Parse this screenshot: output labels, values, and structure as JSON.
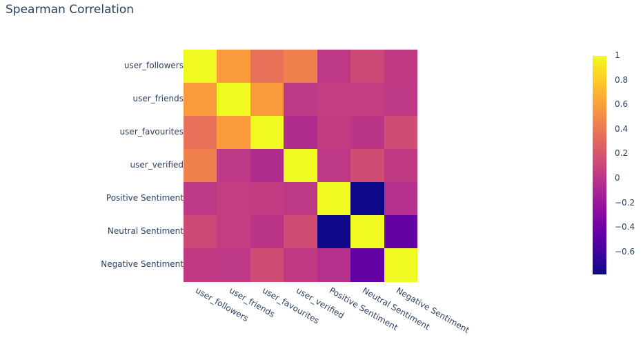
{
  "title": "Spearman Correlation",
  "chart_data": {
    "type": "heatmap",
    "title": "Spearman Correlation",
    "x": [
      "user_followers",
      "user_friends",
      "user_favourites",
      "user_verified",
      "Positive Sentiment",
      "Neutral Sentiment",
      "Negative Sentiment"
    ],
    "y": [
      "user_followers",
      "user_friends",
      "user_favourites",
      "user_verified",
      "Positive Sentiment",
      "Neutral Sentiment",
      "Negative Sentiment"
    ],
    "z": [
      [
        1.0,
        0.58,
        0.36,
        0.45,
        0.02,
        0.12,
        0.03
      ],
      [
        0.58,
        1.0,
        0.58,
        0.02,
        0.05,
        0.05,
        0.02
      ],
      [
        0.36,
        0.58,
        1.0,
        -0.06,
        0.04,
        0.0,
        0.14
      ],
      [
        0.45,
        0.02,
        -0.06,
        1.0,
        0.02,
        0.14,
        0.03
      ],
      [
        0.02,
        0.05,
        0.04,
        0.02,
        1.0,
        -0.78,
        -0.04
      ],
      [
        0.12,
        0.05,
        0.0,
        0.14,
        -0.78,
        1.0,
        -0.45
      ],
      [
        0.03,
        0.02,
        0.14,
        0.03,
        -0.04,
        -0.45,
        1.0
      ]
    ],
    "colorscale": "plasma",
    "zrange": [
      -0.78,
      1.0
    ],
    "colorbar_ticks": [
      "1",
      "0.8",
      "0.6",
      "0.4",
      "0.2",
      "0",
      "−0.2",
      "−0.4",
      "−0.6"
    ],
    "colorbar_tick_values": [
      1,
      0.8,
      0.6,
      0.4,
      0.2,
      0,
      -0.2,
      -0.4,
      -0.6
    ],
    "xlabel": "",
    "ylabel": "",
    "grid": false
  }
}
